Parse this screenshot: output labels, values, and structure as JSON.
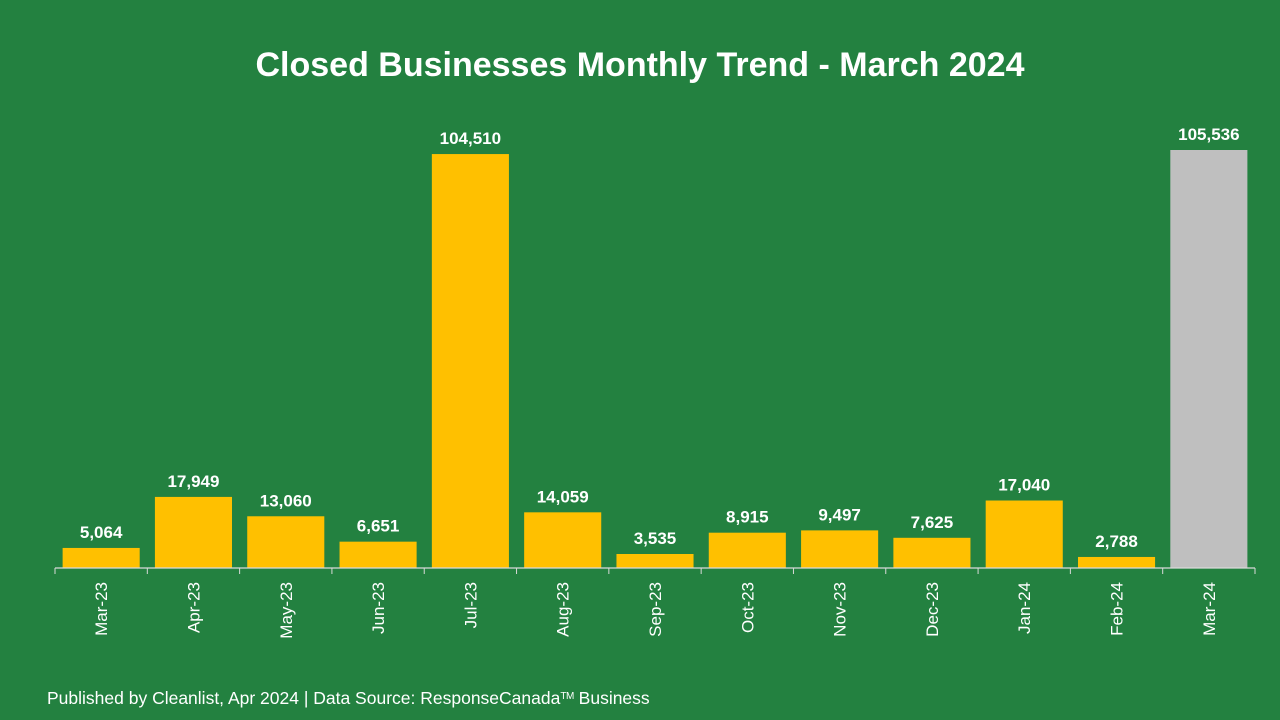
{
  "chart_data": {
    "type": "bar",
    "title": "Closed Businesses Monthly Trend - March 2024",
    "categories": [
      "Mar-23",
      "Apr-23",
      "May-23",
      "Jun-23",
      "Jul-23",
      "Aug-23",
      "Sep-23",
      "Oct-23",
      "Nov-23",
      "Dec-23",
      "Jan-24",
      "Feb-24",
      "Mar-24"
    ],
    "values": [
      5064,
      17949,
      13060,
      6651,
      104510,
      14059,
      3535,
      8915,
      9497,
      7625,
      17040,
      2788,
      105536
    ],
    "value_labels": [
      "5,064",
      "17,949",
      "13,060",
      "6,651",
      "104,510",
      "14,059",
      "3,535",
      "8,915",
      "9,497",
      "7,625",
      "17,040",
      "2,788",
      "105,536"
    ],
    "ylim": [
      0,
      105536
    ],
    "xlabel": "",
    "ylabel": "",
    "grid": false,
    "bar_color": "#FFC000",
    "highlight_color": "#BFBFBF",
    "highlight_index": 12
  },
  "colors": {
    "background": "#238140",
    "axis": "#D9D9D9",
    "text": "#FFFFFF"
  },
  "footer": {
    "text_before": "Published by Cleanlist, Apr 2024 | Data Source: ResponseCanada",
    "trademark": "TM",
    "text_after": " Business"
  }
}
